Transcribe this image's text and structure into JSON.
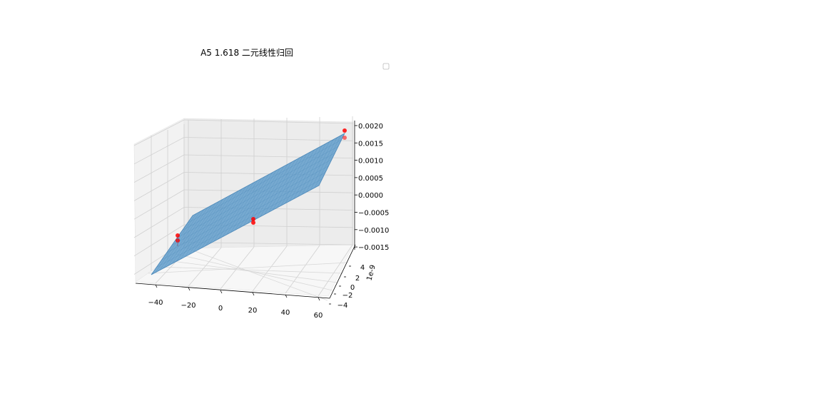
{
  "chart_data": {
    "type": "3d-surface-scatter",
    "title": "A5 1.618 二元线性归回",
    "xlabel": "",
    "ylabel": "",
    "zlabel": "",
    "y_offset_label": "1e-9",
    "x_ticks": [
      "−40",
      "−20",
      "0",
      "20",
      "40",
      "60"
    ],
    "y_ticks": [
      "4",
      "2",
      "0",
      "−2",
      "−4"
    ],
    "z_ticks": [
      "0.0020",
      "0.0015",
      "0.0010",
      "0.0005",
      "0.0000",
      "−0.0005",
      "−0.0010",
      "−0.0015"
    ],
    "xlim": [
      -50,
      60
    ],
    "zlim": [
      -0.0016,
      0.0021
    ],
    "legend": {
      "placement": "top-right",
      "entries": []
    },
    "grid": true,
    "surface_color": "#5b9ac9",
    "point_color": "#ff0000",
    "scatter_points": [
      {
        "x": -43,
        "z": -0.00124
      },
      {
        "x": -43,
        "z": -0.00132
      },
      {
        "x": 10,
        "z": -0.00072
      },
      {
        "x": 10,
        "z": -0.00078
      },
      {
        "x": 58,
        "z": 0.00175
      },
      {
        "x": 58,
        "z": 0.00163
      }
    ]
  }
}
